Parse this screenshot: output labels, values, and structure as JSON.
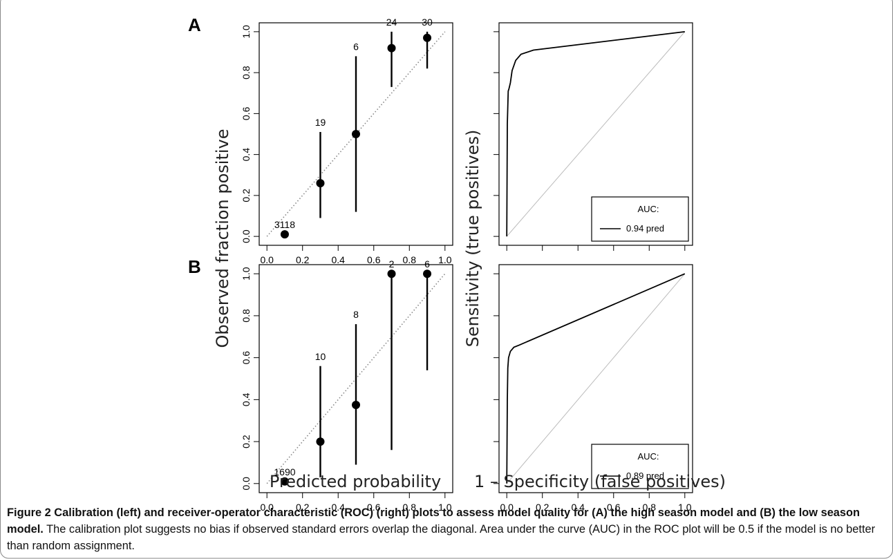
{
  "figure": {
    "panel_labels": [
      "A",
      "B"
    ],
    "axis_labels": {
      "calibration_ylabel": "Observed fraction positive",
      "calibration_xlabel": "Predicted probability",
      "roc_ylabel": "Sensitivity (true positives)",
      "roc_xlabel": "1 – Specificity (false positives)"
    },
    "caption": {
      "bold": "Figure 2 Calibration (left) and receiver-operator characteristic (ROC) (right) plots to assess model quality for (A) the high season model and (B) the low season model.",
      "text": " The calibration plot suggests no bias if observed standard errors overlap the diagonal. Area under the curve (AUC) in the ROC plot will be 0.5 if the model is no better than random assignment."
    }
  },
  "chart_data": [
    {
      "type": "scatter",
      "panel": "A",
      "subtype": "calibration",
      "xlim": [
        0,
        1
      ],
      "ylim": [
        0,
        1
      ],
      "x_ticks": [
        "0.0",
        "0.2",
        "0.4",
        "0.6",
        "0.8",
        "1.0"
      ],
      "y_ticks": [
        "0.0",
        "0.2",
        "0.4",
        "0.6",
        "0.8",
        "1.0"
      ],
      "reference_line": "diagonal dotted",
      "points": [
        {
          "x": 0.1,
          "y": 0.01,
          "lower": 0.01,
          "upper": 0.01,
          "n": "3118"
        },
        {
          "x": 0.3,
          "y": 0.26,
          "lower": 0.09,
          "upper": 0.51,
          "n": "19"
        },
        {
          "x": 0.5,
          "y": 0.5,
          "lower": 0.12,
          "upper": 0.88,
          "n": "6"
        },
        {
          "x": 0.7,
          "y": 0.92,
          "lower": 0.73,
          "upper": 1.0,
          "n": "24"
        },
        {
          "x": 0.9,
          "y": 0.97,
          "lower": 0.82,
          "upper": 1.0,
          "n": "30"
        }
      ]
    },
    {
      "type": "line",
      "panel": "A",
      "subtype": "roc",
      "xlim": [
        0,
        1
      ],
      "ylim": [
        0,
        1
      ],
      "x_ticks": [],
      "reference_line": "diagonal",
      "legend": {
        "title": "AUC:",
        "entry": "0.94 pred",
        "position": "bottom-right"
      },
      "series": [
        {
          "x": [
            0,
            0.003,
            0.008,
            0.012,
            0.02,
            0.03,
            0.05,
            0.08,
            0.15,
            1.0
          ],
          "y": [
            0,
            0.55,
            0.71,
            0.72,
            0.75,
            0.81,
            0.86,
            0.89,
            0.91,
            1.0
          ]
        }
      ]
    },
    {
      "type": "scatter",
      "panel": "B",
      "subtype": "calibration",
      "xlim": [
        0,
        1
      ],
      "ylim": [
        0,
        1
      ],
      "x_ticks": [
        "0.0",
        "0.2",
        "0.4",
        "0.6",
        "0.8",
        "1.0"
      ],
      "y_ticks": [
        "0.0",
        "0.2",
        "0.4",
        "0.6",
        "0.8",
        "1.0"
      ],
      "reference_line": "diagonal dotted",
      "points": [
        {
          "x": 0.1,
          "y": 0.01,
          "lower": 0.01,
          "upper": 0.01,
          "n": "1690"
        },
        {
          "x": 0.3,
          "y": 0.2,
          "lower": 0.03,
          "upper": 0.56,
          "n": "10"
        },
        {
          "x": 0.5,
          "y": 0.375,
          "lower": 0.09,
          "upper": 0.76,
          "n": "8"
        },
        {
          "x": 0.7,
          "y": 1.0,
          "lower": 0.16,
          "upper": 1.0,
          "n": "2"
        },
        {
          "x": 0.9,
          "y": 1.0,
          "lower": 0.54,
          "upper": 1.0,
          "n": "6"
        }
      ]
    },
    {
      "type": "line",
      "panel": "B",
      "subtype": "roc",
      "xlim": [
        0,
        1
      ],
      "ylim": [
        0,
        1
      ],
      "x_ticks": [
        "0.0",
        "0.2",
        "0.4",
        "0.6",
        "0.8",
        "1.0"
      ],
      "reference_line": "diagonal",
      "legend": {
        "title": "AUC:",
        "entry": "0.89 pred",
        "position": "bottom-right"
      },
      "series": [
        {
          "x": [
            0,
            0.003,
            0.006,
            0.01,
            0.02,
            0.04,
            0.07,
            1.0
          ],
          "y": [
            0,
            0.4,
            0.55,
            0.6,
            0.63,
            0.65,
            0.66,
            1.0
          ]
        }
      ]
    }
  ]
}
